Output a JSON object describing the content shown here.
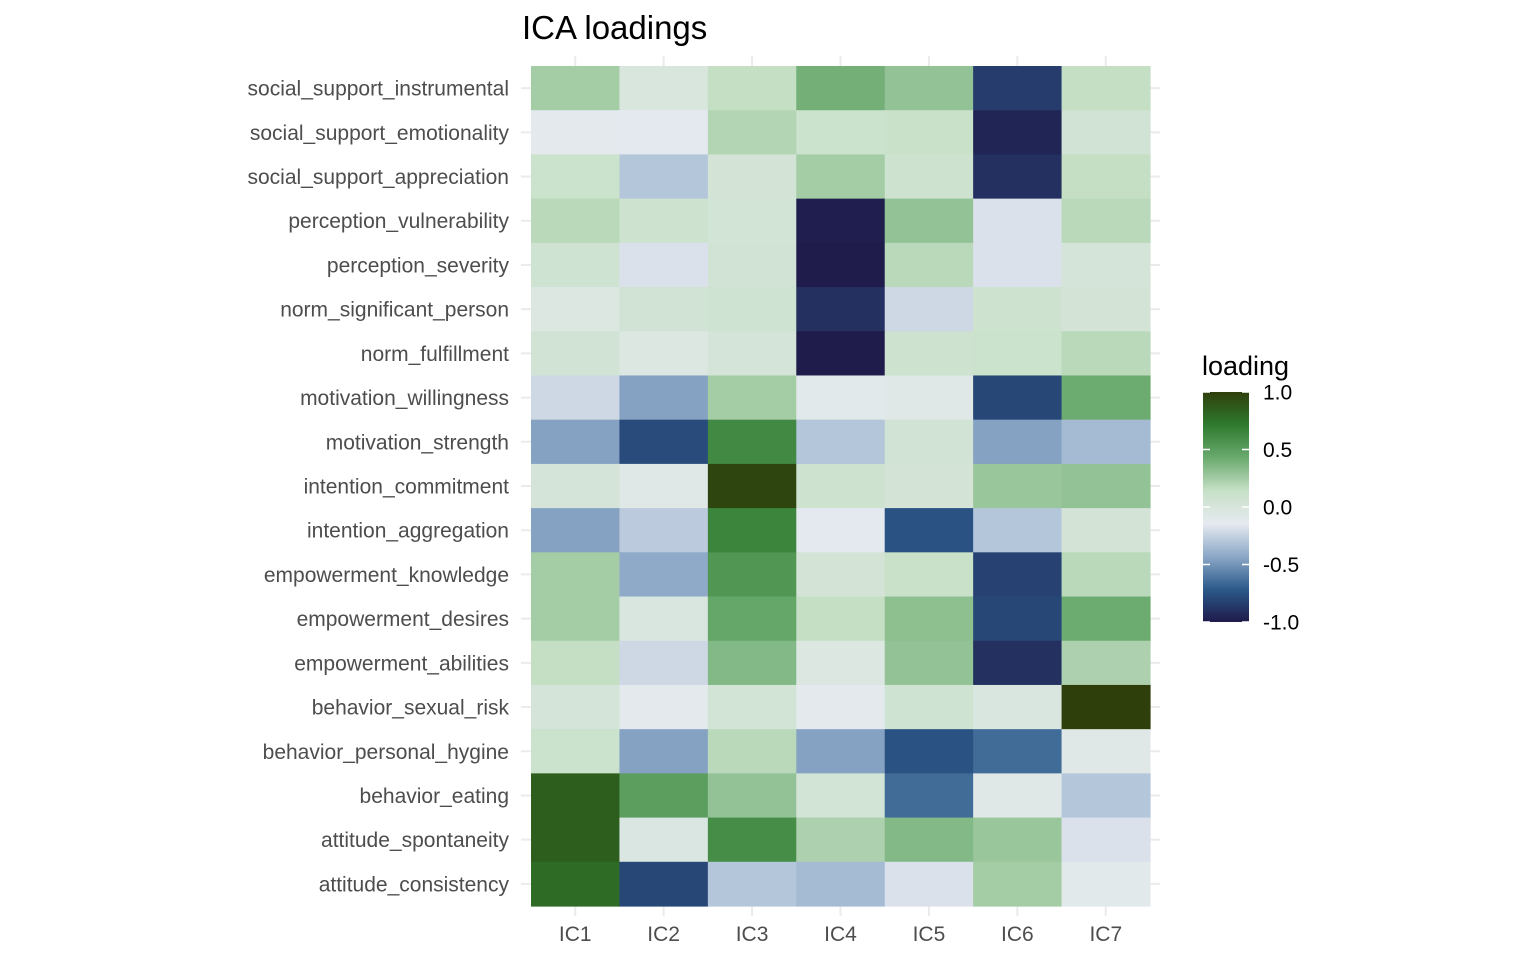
{
  "chart_data": {
    "type": "heatmap",
    "title": "ICA loadings",
    "xlabel": "",
    "ylabel": "",
    "columns": [
      "IC1",
      "IC2",
      "IC3",
      "IC4",
      "IC5",
      "IC6",
      "IC7"
    ],
    "rows": [
      "social_support_instrumental",
      "social_support_emotionality",
      "social_support_appreciation",
      "perception_vulnerability",
      "perception_severity",
      "norm_significant_person",
      "norm_fulfillment",
      "motivation_willingness",
      "motivation_strength",
      "intention_commitment",
      "intention_aggregation",
      "empowerment_knowledge",
      "empowerment_desires",
      "empowerment_abilities",
      "behavior_sexual_risk",
      "behavior_personal_hygine",
      "behavior_eating",
      "attitude_spontaneity",
      "attitude_consistency"
    ],
    "values": [
      [
        0.25,
        -0.02,
        0.15,
        0.4,
        0.3,
        -0.85,
        0.15
      ],
      [
        -0.12,
        -0.15,
        0.2,
        0.1,
        0.12,
        -0.95,
        0.05
      ],
      [
        0.1,
        -0.3,
        0.03,
        0.25,
        0.08,
        -0.9,
        0.15
      ],
      [
        0.18,
        0.08,
        0.04,
        -0.98,
        0.3,
        -0.18,
        0.18
      ],
      [
        0.06,
        -0.18,
        0.05,
        -0.99,
        0.18,
        -0.18,
        0.02
      ],
      [
        -0.05,
        0.05,
        0.06,
        -0.9,
        -0.22,
        0.08,
        0.03
      ],
      [
        0.05,
        -0.05,
        0.02,
        -0.99,
        0.08,
        0.1,
        0.18
      ],
      [
        -0.22,
        -0.45,
        0.25,
        -0.1,
        -0.08,
        -0.8,
        0.42
      ],
      [
        -0.45,
        -0.78,
        0.62,
        -0.3,
        0.05,
        -0.45,
        -0.35
      ],
      [
        0.02,
        -0.08,
        0.97,
        0.08,
        0.03,
        0.28,
        0.3
      ],
      [
        -0.45,
        -0.28,
        0.65,
        -0.15,
        -0.75,
        -0.3,
        0.03
      ],
      [
        0.25,
        -0.42,
        0.55,
        0.03,
        0.12,
        -0.82,
        0.18
      ],
      [
        0.25,
        -0.03,
        0.45,
        0.15,
        0.32,
        -0.8,
        0.42
      ],
      [
        0.15,
        -0.22,
        0.35,
        -0.05,
        0.3,
        -0.9,
        0.22
      ],
      [
        0.02,
        -0.12,
        0.04,
        -0.12,
        0.06,
        -0.03,
        1.0
      ],
      [
        0.1,
        -0.45,
        0.18,
        -0.45,
        -0.75,
        -0.65,
        -0.08
      ],
      [
        0.85,
        0.5,
        0.3,
        0.04,
        -0.65,
        -0.08,
        -0.3
      ],
      [
        0.85,
        -0.04,
        0.6,
        0.22,
        0.35,
        0.28,
        -0.18
      ],
      [
        0.78,
        -0.8,
        -0.3,
        -0.35,
        -0.18,
        0.25,
        -0.1
      ]
    ],
    "color_range": [
      -1.0,
      1.0
    ],
    "colorscale": [
      "#1f1a4a",
      "#2b5a8a",
      "#8ca8c8",
      "#e6eaf0",
      "#c6e0c6",
      "#6aaa6e",
      "#2e7a2e",
      "#2f3f0c"
    ],
    "legend": {
      "title": "loading",
      "position": "right",
      "ticks": [
        "1.0",
        "0.5",
        "0.0",
        "-0.5",
        "-1.0"
      ]
    },
    "grid": true
  }
}
